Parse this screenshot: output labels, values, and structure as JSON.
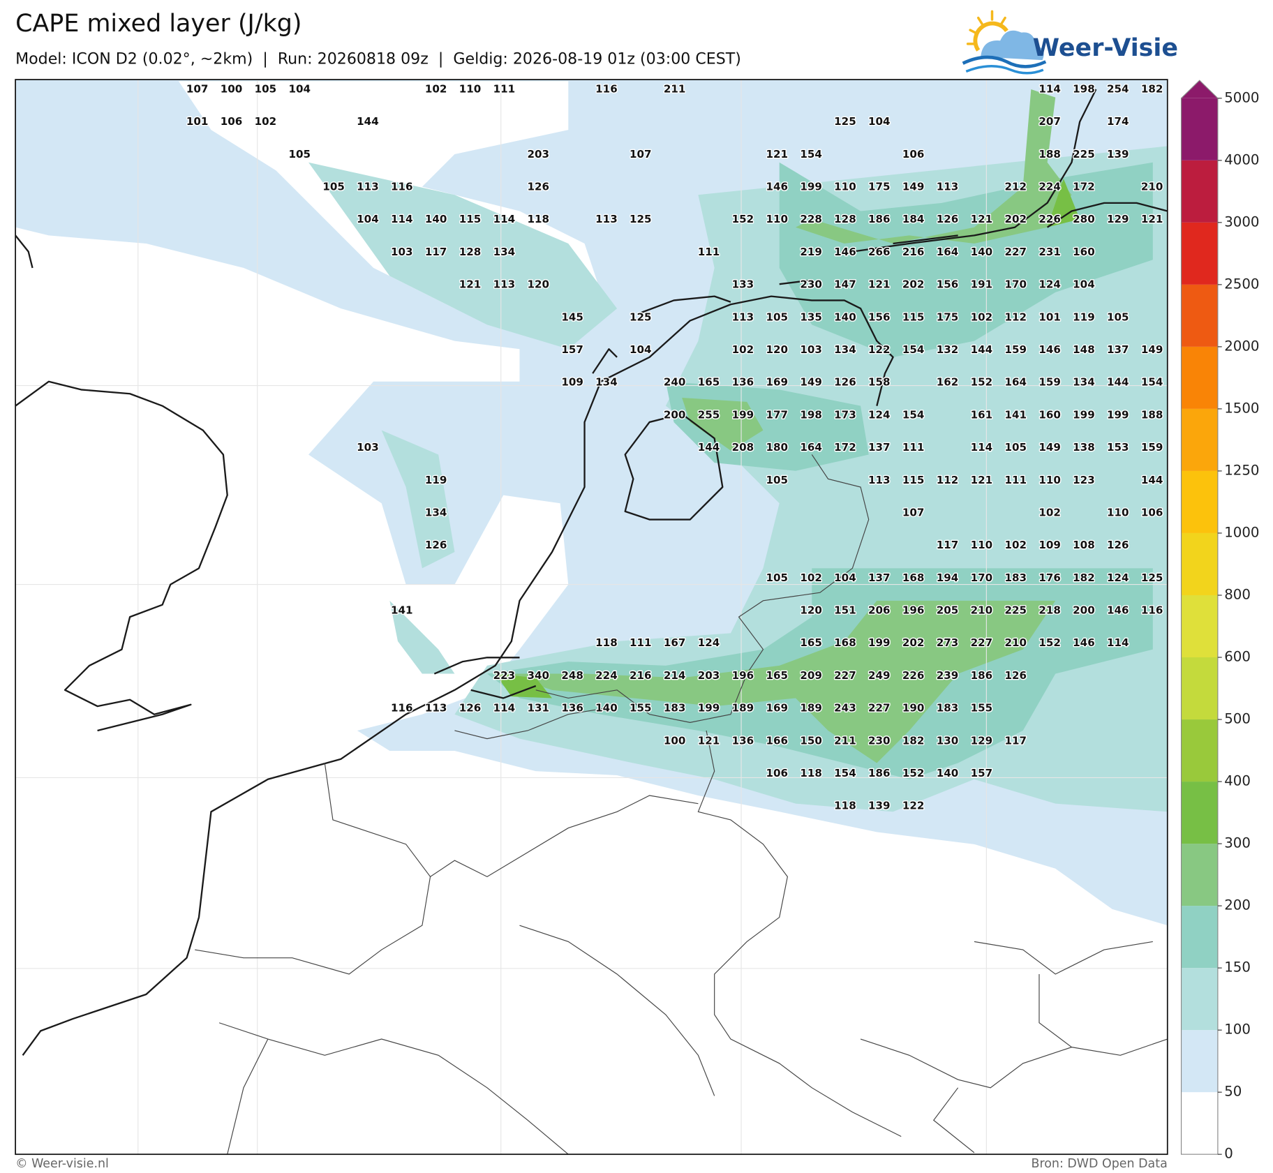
{
  "header": {
    "title": "CAPE mixed layer (J/kg)",
    "subtitle": "Model: ICON D2 (0.02°, ~2km)  |  Run: 20260818 09z  |  Geldig: 2026-08-19 01z (03:00 CEST)"
  },
  "logo": {
    "text": "Weer-Visie"
  },
  "map": {
    "labels": [
      [
        107,
        100,
        105,
        104,
        null,
        null,
        null,
        102,
        110,
        111,
        null,
        null,
        116,
        null,
        211,
        null,
        null,
        null,
        null,
        null,
        null,
        null,
        null,
        null,
        null,
        114,
        198,
        254,
        182
      ],
      [
        101,
        106,
        102,
        null,
        null,
        144,
        null,
        null,
        null,
        null,
        null,
        null,
        null,
        null,
        null,
        null,
        null,
        null,
        null,
        125,
        104,
        null,
        null,
        null,
        null,
        207,
        null,
        174,
        null
      ],
      [
        null,
        null,
        null,
        105,
        null,
        null,
        null,
        null,
        null,
        null,
        203,
        null,
        null,
        107,
        null,
        null,
        null,
        121,
        154,
        null,
        null,
        106,
        null,
        null,
        null,
        188,
        225,
        139,
        null
      ],
      [
        null,
        null,
        null,
        null,
        105,
        113,
        116,
        null,
        null,
        null,
        126,
        null,
        null,
        null,
        null,
        null,
        null,
        146,
        199,
        110,
        175,
        149,
        113,
        null,
        212,
        224,
        172,
        null,
        210
      ],
      [
        null,
        null,
        null,
        null,
        null,
        104,
        114,
        140,
        115,
        114,
        118,
        null,
        113,
        125,
        null,
        null,
        152,
        110,
        228,
        128,
        186,
        184,
        126,
        121,
        202,
        226,
        280,
        129,
        121
      ],
      [
        null,
        null,
        null,
        null,
        null,
        null,
        103,
        117,
        128,
        134,
        null,
        null,
        null,
        null,
        null,
        111,
        null,
        null,
        219,
        146,
        266,
        216,
        164,
        140,
        227,
        231,
        160,
        null,
        null
      ],
      [
        null,
        null,
        null,
        null,
        null,
        null,
        null,
        null,
        121,
        113,
        120,
        null,
        null,
        null,
        null,
        null,
        133,
        null,
        230,
        147,
        121,
        202,
        156,
        191,
        170,
        124,
        104,
        null,
        null
      ],
      [
        null,
        null,
        null,
        null,
        null,
        null,
        null,
        null,
        null,
        null,
        null,
        145,
        null,
        125,
        null,
        null,
        113,
        105,
        135,
        140,
        156,
        115,
        175,
        102,
        112,
        101,
        119,
        105,
        null
      ],
      [
        null,
        null,
        null,
        null,
        null,
        null,
        null,
        null,
        null,
        null,
        null,
        157,
        null,
        104,
        null,
        null,
        102,
        120,
        103,
        134,
        122,
        154,
        132,
        144,
        159,
        146,
        148,
        137,
        149
      ],
      [
        null,
        null,
        null,
        null,
        null,
        null,
        null,
        null,
        null,
        null,
        null,
        109,
        134,
        null,
        240,
        165,
        136,
        169,
        149,
        126,
        158,
        null,
        162,
        152,
        164,
        159,
        134,
        144,
        154
      ],
      [
        null,
        null,
        null,
        null,
        null,
        null,
        null,
        null,
        null,
        null,
        null,
        null,
        null,
        null,
        200,
        255,
        199,
        177,
        198,
        173,
        124,
        154,
        null,
        161,
        141,
        160,
        199,
        199,
        188
      ],
      [
        null,
        null,
        null,
        null,
        null,
        103,
        null,
        null,
        null,
        null,
        null,
        null,
        null,
        null,
        null,
        144,
        208,
        180,
        164,
        172,
        137,
        111,
        null,
        114,
        105,
        149,
        138,
        153,
        159
      ],
      [
        null,
        null,
        null,
        null,
        null,
        null,
        null,
        119,
        null,
        null,
        null,
        null,
        null,
        null,
        null,
        null,
        null,
        105,
        null,
        null,
        113,
        115,
        112,
        121,
        111,
        110,
        123,
        null,
        144
      ],
      [
        null,
        null,
        null,
        null,
        null,
        null,
        null,
        134,
        null,
        null,
        null,
        null,
        null,
        null,
        null,
        null,
        null,
        null,
        null,
        null,
        null,
        107,
        null,
        null,
        null,
        102,
        null,
        110,
        106
      ],
      [
        null,
        null,
        null,
        null,
        null,
        null,
        null,
        126,
        null,
        null,
        null,
        null,
        null,
        null,
        null,
        null,
        null,
        null,
        null,
        null,
        null,
        null,
        117,
        110,
        102,
        109,
        108,
        126,
        null
      ],
      [
        null,
        null,
        null,
        null,
        null,
        null,
        null,
        null,
        null,
        null,
        null,
        null,
        null,
        null,
        null,
        null,
        null,
        105,
        102,
        104,
        137,
        168,
        194,
        170,
        183,
        176,
        182,
        124,
        125
      ],
      [
        null,
        null,
        null,
        null,
        null,
        null,
        141,
        null,
        null,
        null,
        null,
        null,
        null,
        null,
        null,
        null,
        null,
        null,
        120,
        151,
        206,
        196,
        205,
        210,
        225,
        218,
        200,
        146,
        116
      ],
      [
        null,
        null,
        null,
        null,
        null,
        null,
        null,
        null,
        null,
        null,
        null,
        null,
        118,
        111,
        167,
        124,
        null,
        null,
        165,
        168,
        199,
        202,
        273,
        227,
        210,
        152,
        146,
        114,
        null
      ],
      [
        null,
        null,
        null,
        null,
        null,
        null,
        null,
        null,
        null,
        223,
        340,
        248,
        224,
        216,
        214,
        203,
        196,
        165,
        209,
        227,
        249,
        226,
        239,
        186,
        126,
        null,
        null,
        null,
        null
      ],
      [
        null,
        null,
        null,
        null,
        null,
        null,
        116,
        113,
        126,
        114,
        131,
        136,
        140,
        155,
        183,
        199,
        189,
        169,
        189,
        243,
        227,
        190,
        183,
        155,
        null,
        null,
        null,
        null,
        null
      ],
      [
        null,
        null,
        null,
        null,
        null,
        null,
        null,
        null,
        null,
        null,
        null,
        null,
        null,
        null,
        100,
        121,
        136,
        166,
        150,
        211,
        230,
        182,
        130,
        129,
        117,
        null,
        null,
        null,
        null
      ],
      [
        null,
        null,
        null,
        null,
        null,
        null,
        null,
        null,
        null,
        null,
        null,
        null,
        null,
        null,
        null,
        null,
        null,
        106,
        118,
        154,
        186,
        152,
        140,
        157,
        null,
        null,
        null,
        null,
        null
      ],
      [
        null,
        null,
        null,
        null,
        null,
        null,
        null,
        null,
        null,
        null,
        null,
        null,
        null,
        null,
        null,
        null,
        null,
        null,
        null,
        118,
        139,
        122,
        null,
        null,
        null,
        null,
        null,
        null,
        null
      ]
    ]
  },
  "colorbar": {
    "levels": [
      0,
      50,
      100,
      150,
      200,
      300,
      400,
      500,
      600,
      800,
      1000,
      1250,
      1500,
      2000,
      2500,
      3000,
      4000,
      5000
    ],
    "colors": [
      "#ffffff",
      "#d3e7f5",
      "#b3dfdd",
      "#90d1c3",
      "#88c882",
      "#77bf45",
      "#99c93b",
      "#c4da3c",
      "#dfe03a",
      "#f2d41c",
      "#fcc20c",
      "#fba60b",
      "#f98406",
      "#ee5a12",
      "#e0281e",
      "#bc1d3e",
      "#8c1a6a"
    ],
    "extend_color": "#8c1a6a"
  },
  "footer": {
    "left": "© Weer-visie.nl",
    "right": "Bron: DWD Open Data"
  }
}
